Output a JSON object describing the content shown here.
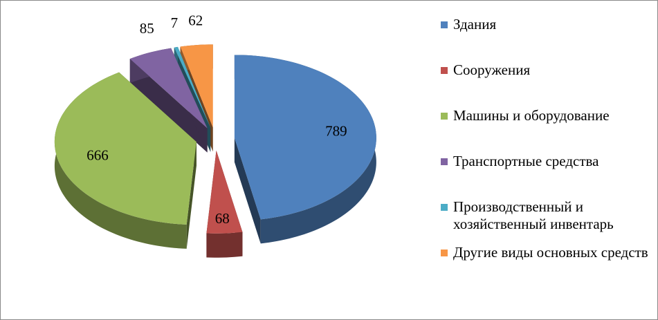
{
  "chart_data": {
    "type": "pie3d",
    "categories": [
      "Здания",
      "Сооружения",
      "Машины и оборудование",
      "Транспортные средства",
      "Производственный и хозяйственный инвентарь",
      "Другие виды основных средств"
    ],
    "values": [
      789,
      68,
      666,
      85,
      7,
      62
    ],
    "colors": [
      "#4F81BD",
      "#C0504D",
      "#9BBB59",
      "#8064A2",
      "#4BACC6",
      "#F79646"
    ],
    "legend": "right"
  }
}
